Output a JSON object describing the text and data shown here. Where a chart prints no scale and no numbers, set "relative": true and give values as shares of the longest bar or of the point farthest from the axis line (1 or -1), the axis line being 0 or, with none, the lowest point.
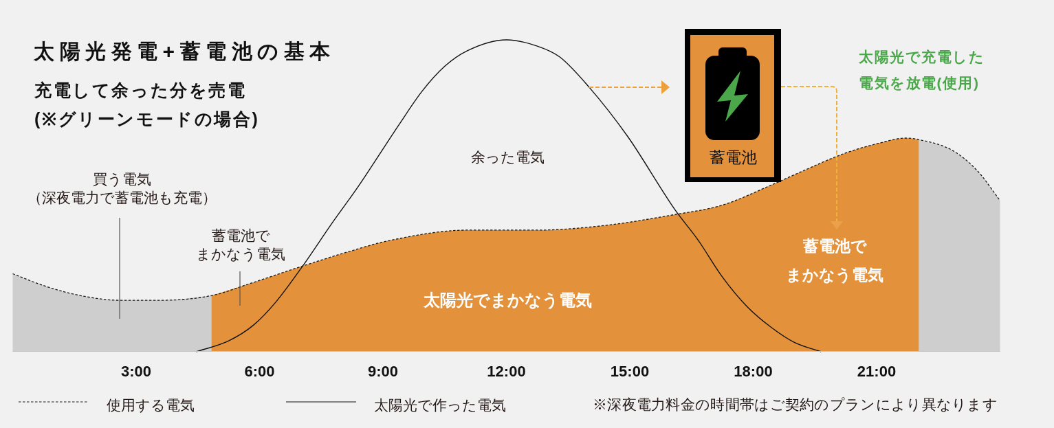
{
  "chart_data": {
    "type": "area",
    "title": "太陽光発電+蓄電池の基本",
    "subtitle": "充電して余った分を売電\n(※グリーンモードの場合)",
    "relative": true,
    "xlim": [
      0,
      24
    ],
    "xticks": [
      {
        "value": 3,
        "label": "3:00"
      },
      {
        "value": 6,
        "label": "6:00"
      },
      {
        "value": 9,
        "label": "9:00"
      },
      {
        "value": 12,
        "label": "12:00"
      },
      {
        "value": 15,
        "label": "15:00"
      },
      {
        "value": 18,
        "label": "18:00"
      },
      {
        "value": 21,
        "label": "21:00"
      }
    ],
    "series": [
      {
        "color": "#cdcecd",
        "x": [
          0,
          0.8,
          1.65,
          2.6,
          3.6,
          4.83
        ],
        "values": [
          0.25,
          0.21,
          0.18,
          0.165,
          0.165,
          0.18
        ]
      },
      {
        "color": "#e3923b",
        "x": [
          4.83,
          5.8,
          7.05,
          8.4,
          9.1,
          11.05,
          12.75,
          14.4,
          16.1,
          17.25,
          18.45,
          19.3,
          20.2,
          21.1,
          21.7,
          22.03
        ],
        "values": [
          0.18,
          0.22,
          0.275,
          0.33,
          0.355,
          0.39,
          0.39,
          0.405,
          0.44,
          0.47,
          0.535,
          0.585,
          0.635,
          0.67,
          0.685,
          0.68
        ]
      },
      {
        "color": "#cdcecd",
        "x": [
          22.03,
          22.85,
          23.45,
          24
        ],
        "values": [
          0.68,
          0.645,
          0.58,
          0.485
        ]
      },
      {
        "name": "使用する電気",
        "type": "line",
        "line_style": "dashed",
        "color": "#1a1a1a",
        "x": [
          0,
          0.8,
          1.65,
          2.6,
          3.6,
          4.83,
          5.8,
          7.05,
          8.4,
          9.1,
          11.05,
          12.75,
          14.4,
          16.1,
          17.25,
          18.45,
          19.3,
          20.2,
          21.1,
          21.7,
          22.03,
          22.85,
          23.45,
          24
        ],
        "values": [
          0.25,
          0.21,
          0.18,
          0.165,
          0.165,
          0.18,
          0.22,
          0.275,
          0.33,
          0.355,
          0.39,
          0.39,
          0.405,
          0.44,
          0.47,
          0.535,
          0.585,
          0.635,
          0.67,
          0.685,
          0.68,
          0.645,
          0.58,
          0.485
        ]
      },
      {
        "name": "太陽光で作った電気",
        "type": "line",
        "line_style": "solid",
        "color": "#111111",
        "x": [
          4.46,
          5.25,
          5.85,
          6.4,
          7.05,
          7.75,
          8.4,
          9.4,
          9.95,
          10.5,
          11.05,
          12,
          12.75,
          13.3,
          14.0,
          14.95,
          16.1,
          16.65,
          17.25,
          17.85,
          18.45,
          19.0,
          19.65
        ],
        "values": [
          0,
          0.035,
          0.085,
          0.16,
          0.275,
          0.41,
          0.53,
          0.73,
          0.835,
          0.915,
          0.965,
          1,
          0.98,
          0.945,
          0.85,
          0.69,
          0.455,
          0.36,
          0.24,
          0.145,
          0.077,
          0.03,
          0
        ]
      }
    ],
    "legend": "bottom",
    "annotations": [
      "買う電気（深夜電力で蓄電池も充電）",
      "蓄電池でまかなう電気",
      "余った電気",
      "太陽光でまかなう電気",
      "蓄電池でまかなう電気",
      "太陽光で充電した電気を放電(使用)",
      "蓄電池",
      "※深夜電力料金の時間帯はご契約のプランにより異なります"
    ]
  }
}
